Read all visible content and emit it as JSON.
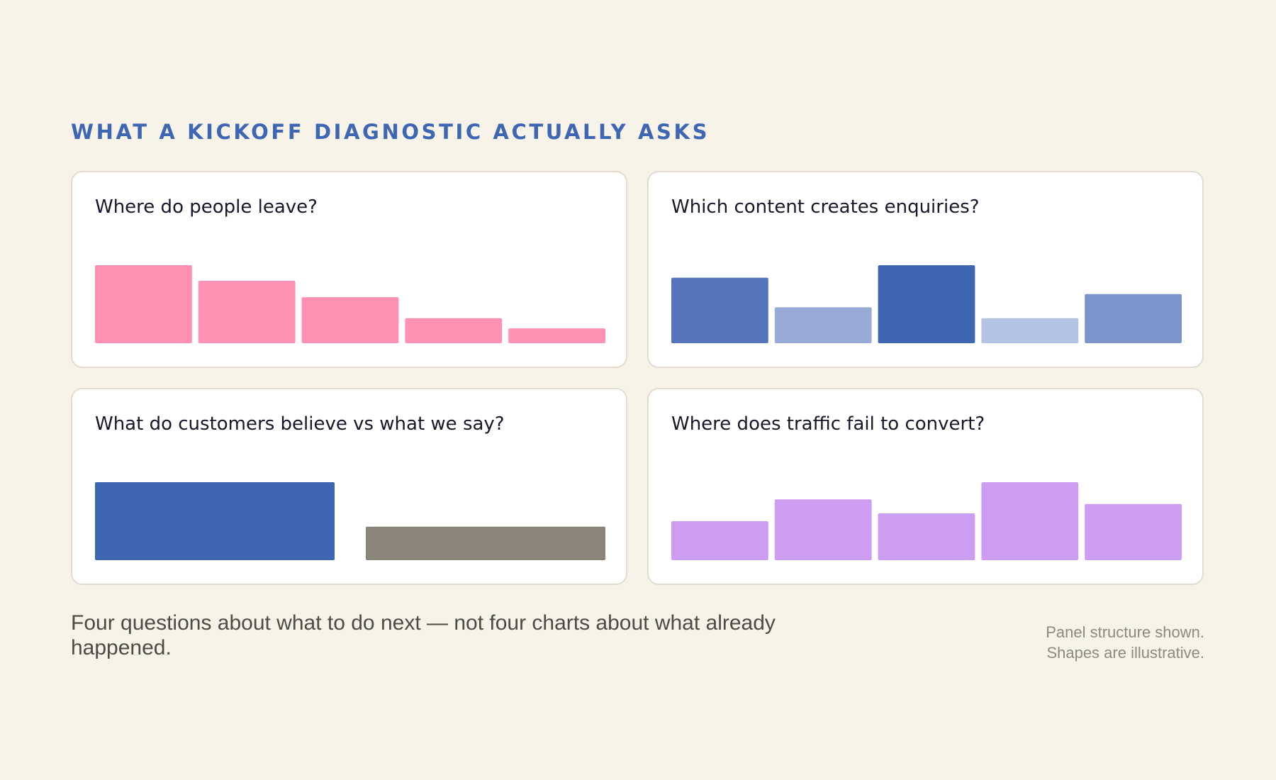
{
  "header": {
    "title": "WHAT A KICKOFF DIAGNOSTIC ACTUALLY ASKS"
  },
  "chart_data": [
    {
      "type": "bar",
      "title": "Where do people leave?",
      "values": [
        100,
        80,
        59,
        32,
        19
      ],
      "colors": [
        "#ff91b2",
        "#ff91b2",
        "#ff91b2",
        "#ff91b2",
        "#ff91b2"
      ]
    },
    {
      "type": "bar",
      "title": "Which content creates enquiries?",
      "values": [
        84,
        46,
        100,
        32,
        63
      ],
      "colors": [
        "#5475bc",
        "#98abd6",
        "#3f66b2",
        "#b3c3e3",
        "#7b95cb"
      ]
    },
    {
      "type": "bar",
      "title": "What do customers believe vs what we say?",
      "values": [
        100,
        43
      ],
      "colors": [
        "#3f66b2",
        "#8b8478"
      ]
    },
    {
      "type": "bar",
      "title": "Where does traffic fail to convert?",
      "values": [
        50,
        78,
        60,
        100,
        72
      ],
      "colors": [
        "#cc9df0",
        "#cc9df0",
        "#cc9df0",
        "#cc9df0",
        "#cc9df0"
      ]
    }
  ],
  "footer": {
    "caption": "Four questions about what to do next — not four charts about what already happened.",
    "note_line1": "Panel structure shown.",
    "note_line2": "Shapes are illustrative."
  }
}
